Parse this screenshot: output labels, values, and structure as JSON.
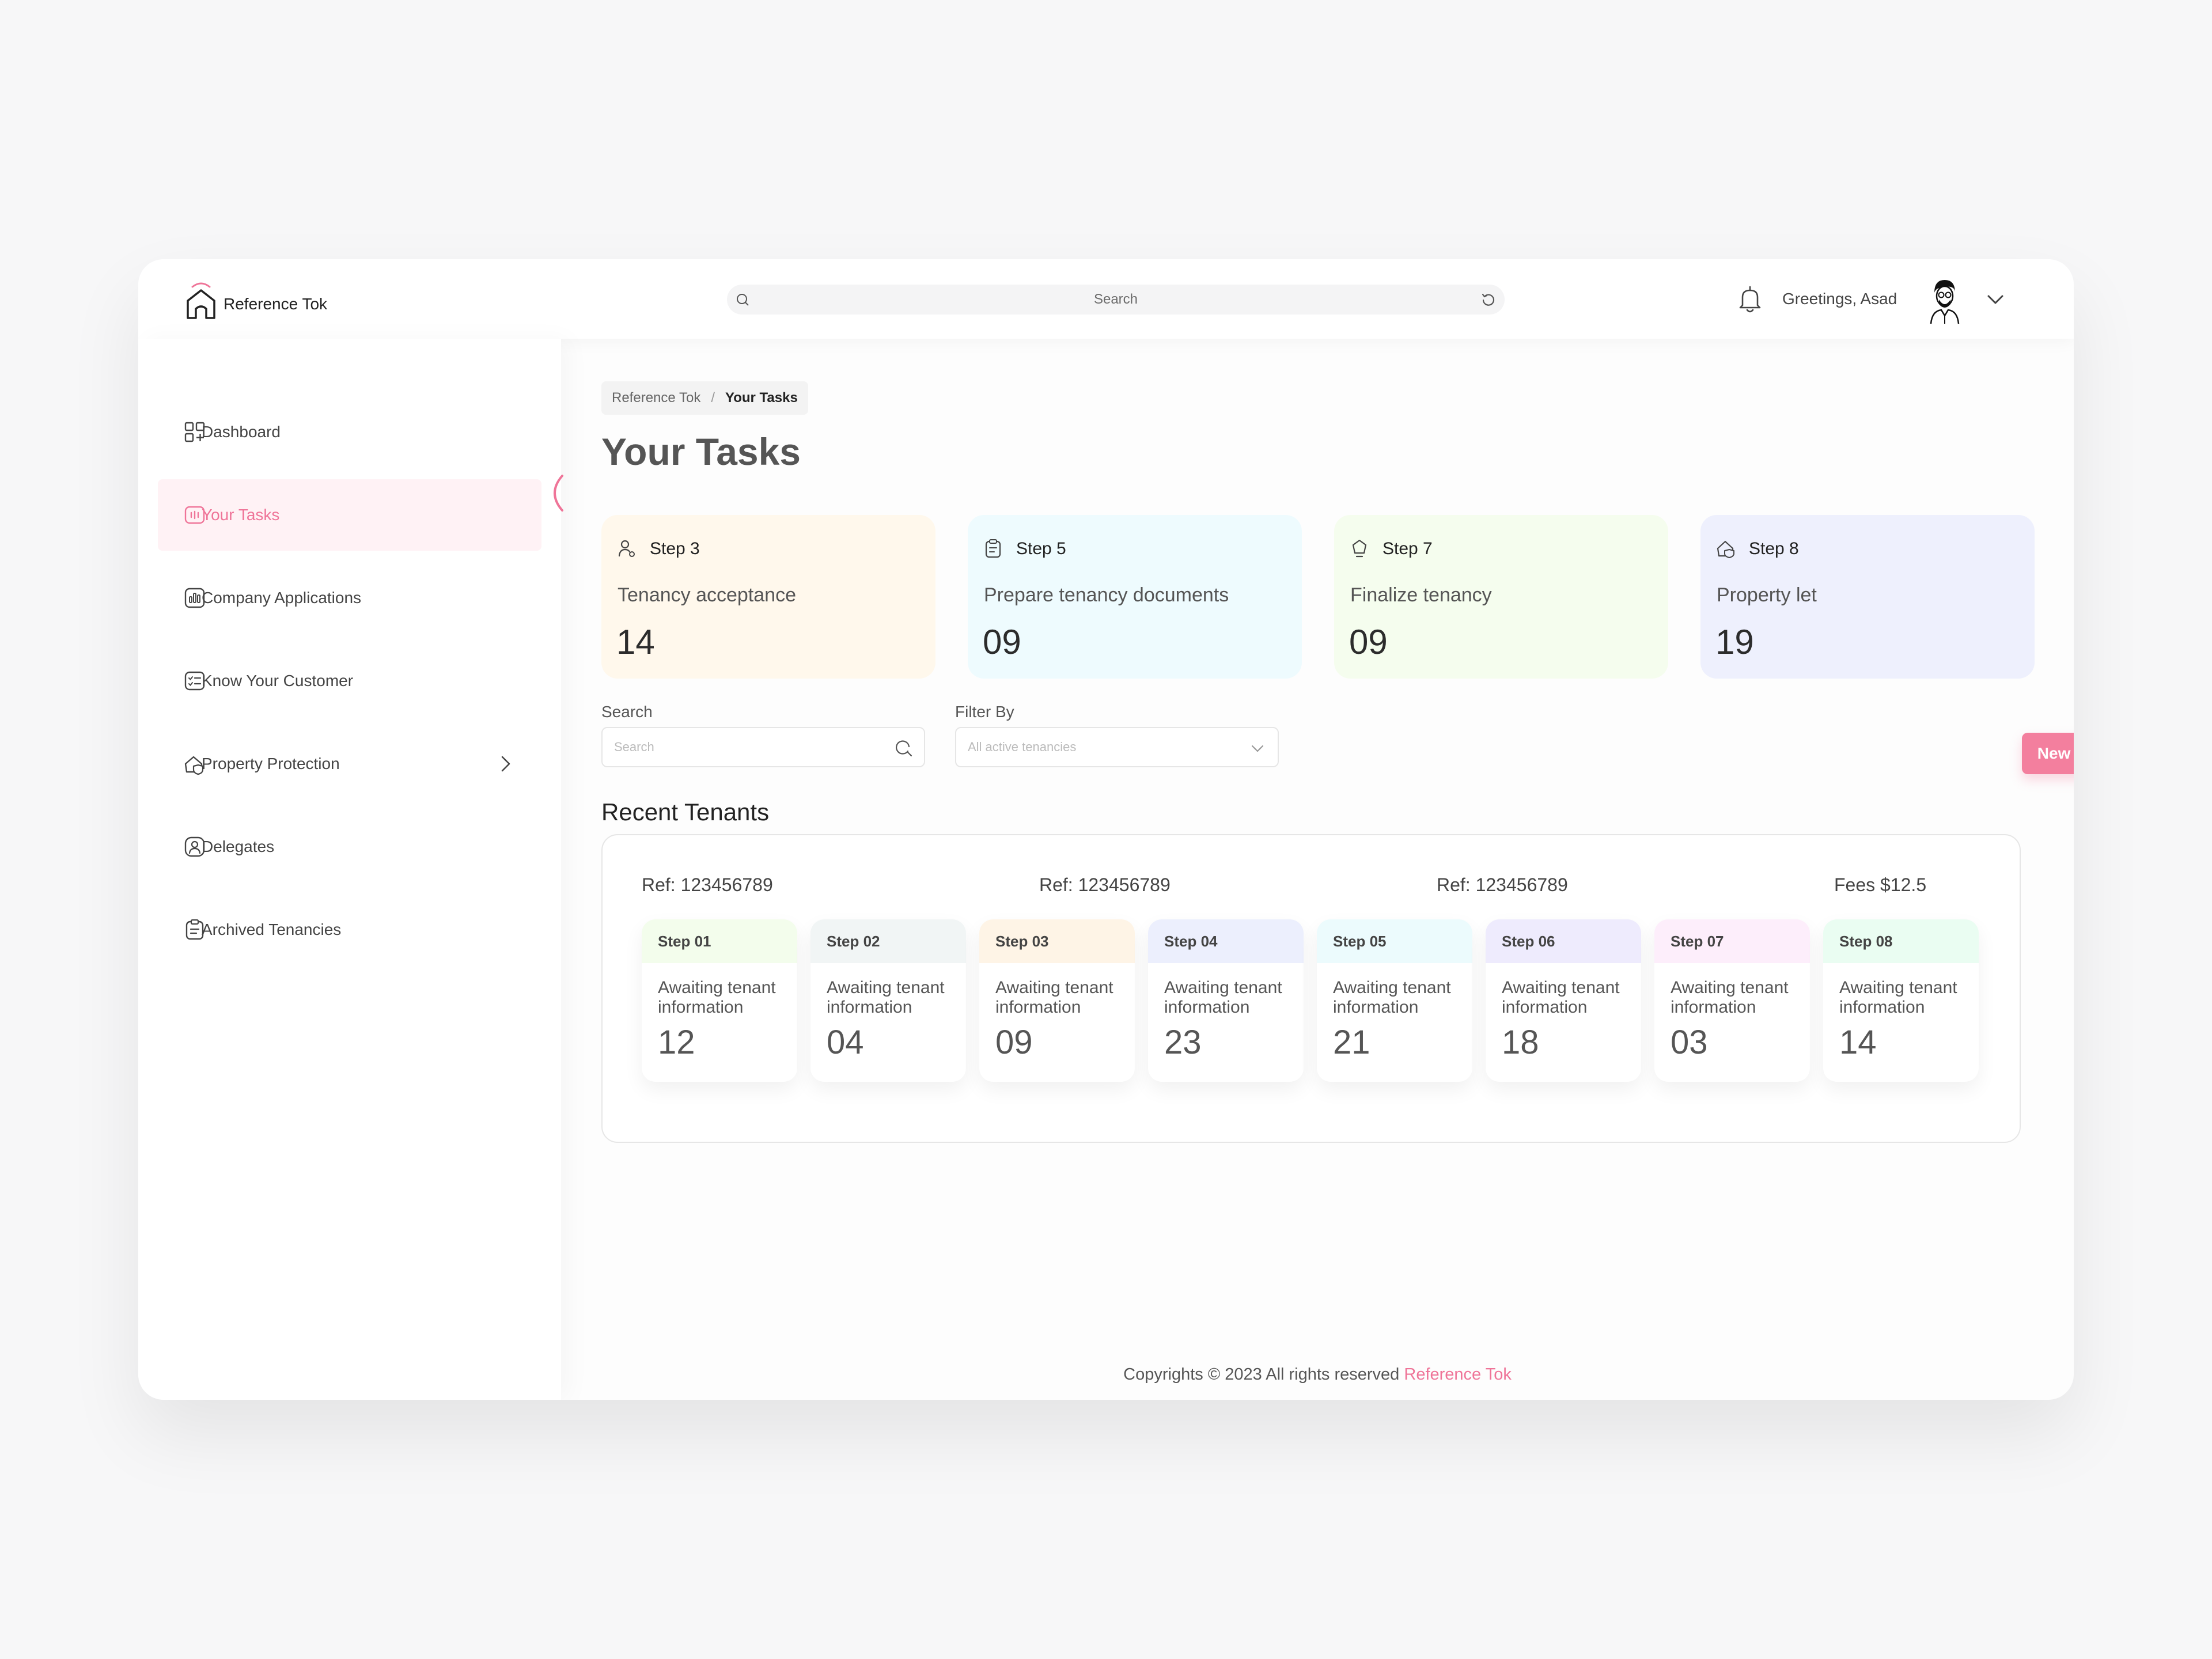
{
  "header": {
    "brand": "Reference Tok",
    "search_placeholder": "Search",
    "greeting": "Greetings, Asad"
  },
  "sidebar": {
    "items": [
      {
        "label": "Dashboard",
        "icon": "dashboard-icon"
      },
      {
        "label": "Your Tasks",
        "icon": "tasks-icon",
        "active": true
      },
      {
        "label": "Company Applications",
        "icon": "applications-icon"
      },
      {
        "label": "Know Your Customer",
        "icon": "kyc-icon"
      },
      {
        "label": "Property Protection",
        "icon": "shield-house-icon",
        "has_submenu": true
      },
      {
        "label": "Delegates",
        "icon": "delegates-icon"
      },
      {
        "label": "Archived Tenancies",
        "icon": "archive-icon"
      }
    ]
  },
  "main": {
    "breadcrumb": {
      "root": "Reference Tok",
      "separator": "/",
      "current": "Your Tasks"
    },
    "title": "Your Tasks",
    "step_cards": [
      {
        "step": "Step 3",
        "title": "Tenancy acceptance",
        "count": "14",
        "bg": "#fff8ec",
        "icon": "user-icon"
      },
      {
        "step": "Step 5",
        "title": "Prepare tenancy documents",
        "count": "09",
        "bg": "#eefbfe",
        "icon": "clipboard-icon"
      },
      {
        "step": "Step 7",
        "title": "Finalize tenancy",
        "count": "09",
        "bg": "#f5fdee",
        "icon": "badge-icon"
      },
      {
        "step": "Step 8",
        "title": "Property let",
        "count": "19",
        "bg": "#eef0fd",
        "icon": "house-icon"
      }
    ],
    "search": {
      "label": "Search",
      "placeholder": "Search"
    },
    "filter": {
      "label": "Filter By",
      "value": "All active tenancies"
    },
    "new_tenancy_label": "New Tenancy",
    "new_tenancy_plus": "+",
    "recent_title": "Recent Tenants",
    "refs": [
      "Ref: 123456789",
      "Ref: 123456789",
      "Ref: 123456789",
      "Fees $12.5"
    ],
    "mini_steps": [
      {
        "step": "Step 01",
        "text": "Awaiting tenant information",
        "count": "12",
        "bg": "#f3fdec"
      },
      {
        "step": "Step 02",
        "text": "Awaiting tenant information",
        "count": "04",
        "bg": "#f1f5f5"
      },
      {
        "step": "Step 03",
        "text": "Awaiting tenant information",
        "count": "09",
        "bg": "#fef4e6"
      },
      {
        "step": "Step 04",
        "text": "Awaiting tenant information",
        "count": "23",
        "bg": "#eceffd"
      },
      {
        "step": "Step 05",
        "text": "Awaiting tenant information",
        "count": "21",
        "bg": "#ecfbfd"
      },
      {
        "step": "Step 06",
        "text": "Awaiting tenant information",
        "count": "18",
        "bg": "#eeebfd"
      },
      {
        "step": "Step 07",
        "text": "Awaiting tenant information",
        "count": "03",
        "bg": "#fdeefb"
      },
      {
        "step": "Step 08",
        "text": "Awaiting tenant information",
        "count": "14",
        "bg": "#eafdf2"
      }
    ]
  },
  "footer": {
    "text": "Copyrights © 2023  All rights reserved ",
    "brand": "Reference Tok"
  },
  "colors": {
    "accent": "#f37f9e",
    "accent_text": "#ef7498"
  }
}
